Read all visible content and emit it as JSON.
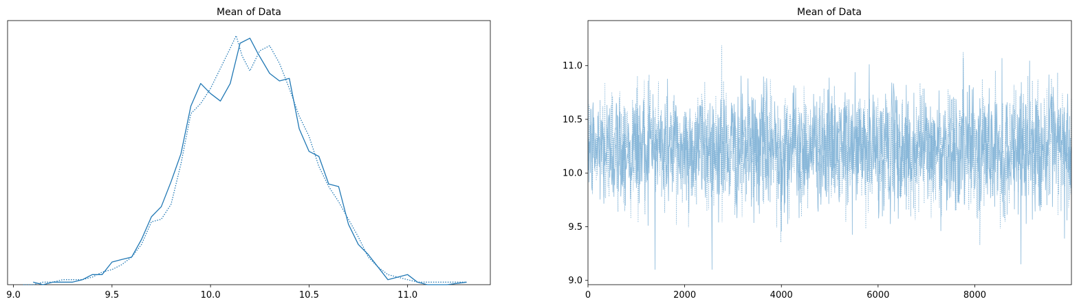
{
  "chart_data": [
    {
      "type": "line",
      "title": "Mean of Data",
      "xlabel": "",
      "ylabel": "",
      "xlim": [
        8.97,
        11.42
      ],
      "x_ticks": [
        9.0,
        9.5,
        10.0,
        10.5,
        11.0
      ],
      "x_tick_labels": [
        "9.0",
        "9.5",
        "10.0",
        "10.5",
        "11.0"
      ],
      "y_ticks": [],
      "ylim": [
        0,
        1.05
      ],
      "grid": false,
      "legend": "none",
      "color": "#1f77b4",
      "series": [
        {
          "linestyle": "solid",
          "x": [
            9.1,
            9.15,
            9.2,
            9.25,
            9.3,
            9.35,
            9.4,
            9.45,
            9.5,
            9.55,
            9.6,
            9.65,
            9.7,
            9.75,
            9.8,
            9.85,
            9.9,
            9.95,
            10.0,
            10.05,
            10.1,
            10.15,
            10.2,
            10.24,
            10.3,
            10.35,
            10.4,
            10.45,
            10.5,
            10.55,
            10.6,
            10.65,
            10.7,
            10.75,
            10.8,
            10.85,
            10.9,
            10.95,
            11.0,
            11.05,
            11.1,
            11.2,
            11.3
          ],
          "y": [
            0.01,
            0.0,
            0.01,
            0.01,
            0.01,
            0.02,
            0.04,
            0.04,
            0.09,
            0.1,
            0.11,
            0.18,
            0.27,
            0.31,
            0.41,
            0.52,
            0.71,
            0.8,
            0.76,
            0.73,
            0.8,
            0.96,
            0.98,
            0.92,
            0.84,
            0.81,
            0.82,
            0.62,
            0.53,
            0.51,
            0.4,
            0.39,
            0.24,
            0.16,
            0.12,
            0.07,
            0.02,
            0.03,
            0.04,
            0.01,
            0.0,
            0.0,
            0.01
          ]
        },
        {
          "linestyle": "dotted",
          "x": [
            9.05,
            9.1,
            9.15,
            9.2,
            9.25,
            9.3,
            9.35,
            9.4,
            9.45,
            9.5,
            9.55,
            9.6,
            9.65,
            9.7,
            9.75,
            9.8,
            9.85,
            9.9,
            9.95,
            10.0,
            10.05,
            10.1,
            10.13,
            10.16,
            10.2,
            10.25,
            10.3,
            10.35,
            10.4,
            10.45,
            10.5,
            10.55,
            10.6,
            10.65,
            10.7,
            10.75,
            10.8,
            10.85,
            10.9,
            10.95,
            11.0,
            11.05,
            11.1,
            11.2,
            11.3
          ],
          "y": [
            0.0,
            0.0,
            0.01,
            0.01,
            0.02,
            0.02,
            0.02,
            0.03,
            0.05,
            0.06,
            0.08,
            0.11,
            0.16,
            0.25,
            0.26,
            0.32,
            0.48,
            0.68,
            0.72,
            0.78,
            0.86,
            0.94,
            0.99,
            0.91,
            0.85,
            0.93,
            0.95,
            0.88,
            0.78,
            0.67,
            0.59,
            0.47,
            0.39,
            0.33,
            0.26,
            0.19,
            0.11,
            0.07,
            0.04,
            0.03,
            0.02,
            0.01,
            0.01,
            0.01,
            0.01
          ]
        }
      ]
    },
    {
      "type": "line",
      "title": "Mean of Data",
      "xlabel": "",
      "ylabel": "",
      "xlim": [
        0,
        9999
      ],
      "ylim": [
        8.96,
        11.42
      ],
      "x_ticks": [
        0,
        2000,
        4000,
        6000,
        8000
      ],
      "x_tick_labels": [
        "0",
        "2000",
        "4000",
        "6000",
        "8000"
      ],
      "y_ticks": [
        9.0,
        9.5,
        10.0,
        10.5,
        11.0
      ],
      "y_tick_labels": [
        "9.0",
        "9.5",
        "10.0",
        "10.5",
        "11.0"
      ],
      "grid": false,
      "legend": "none",
      "color": "#7fb2d6",
      "trace_mean": 10.23,
      "trace_sd": 0.28,
      "trace_min": 9.1,
      "trace_max": 11.32,
      "n_samples": 10000
    }
  ]
}
